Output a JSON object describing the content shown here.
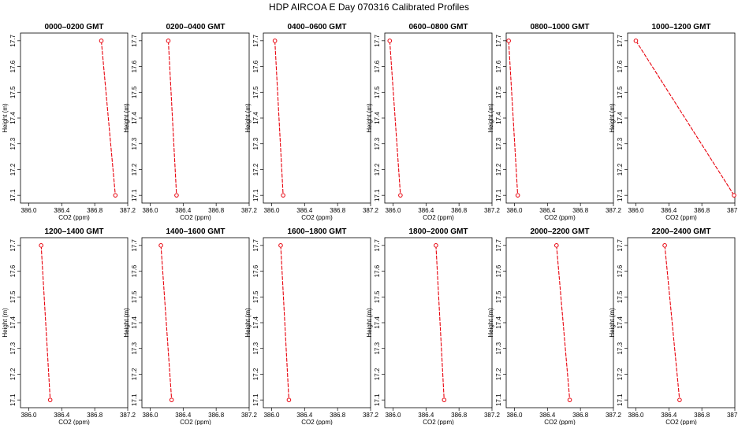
{
  "title": "HDP  AIRCOA E  Day 070316  Calibrated Profiles",
  "colors": {
    "series": "#e8000b",
    "axis": "#000000",
    "background": "#ffffff"
  },
  "chart_data": {
    "type": "line",
    "layout": "grid-2x6",
    "grid": false,
    "legend": "none",
    "xlabel": "CO2 (ppm)",
    "ylabel": "Height (m)",
    "xlim": [
      385.9,
      387.2
    ],
    "ylim": [
      17.07,
      17.73
    ],
    "xticks": [
      386.0,
      386.4,
      386.8,
      387.2
    ],
    "xtick_labels": [
      "386.0",
      "386.4",
      "386.8",
      "387.2"
    ],
    "yticks": [
      17.1,
      17.2,
      17.3,
      17.4,
      17.5,
      17.6,
      17.7
    ],
    "ytick_labels": [
      "17.1",
      "17.2",
      "17.3",
      "17.4",
      "17.5",
      "17.6",
      "17.7"
    ],
    "panels": [
      {
        "title": "0000–0200 GMT",
        "points": [
          [
            386.88,
            17.7
          ],
          [
            387.05,
            17.1
          ]
        ]
      },
      {
        "title": "0200–0400 GMT",
        "points": [
          [
            386.22,
            17.7
          ],
          [
            386.32,
            17.1
          ]
        ]
      },
      {
        "title": "0400–0600 GMT",
        "points": [
          [
            386.04,
            17.7
          ],
          [
            386.14,
            17.1
          ]
        ]
      },
      {
        "title": "0600–0800 GMT",
        "points": [
          [
            385.96,
            17.7
          ],
          [
            386.09,
            17.1
          ]
        ]
      },
      {
        "title": "0800–1000 GMT",
        "points": [
          [
            385.93,
            17.7
          ],
          [
            386.04,
            17.1
          ]
        ]
      },
      {
        "title": "1000–1200 GMT",
        "points": [
          [
            386.0,
            17.7
          ],
          [
            387.19,
            17.1
          ]
        ]
      },
      {
        "title": "1200–1400 GMT",
        "points": [
          [
            386.15,
            17.7
          ],
          [
            386.26,
            17.1
          ]
        ]
      },
      {
        "title": "1400–1600 GMT",
        "points": [
          [
            386.13,
            17.7
          ],
          [
            386.26,
            17.1
          ]
        ]
      },
      {
        "title": "1600–1800 GMT",
        "points": [
          [
            386.11,
            17.7
          ],
          [
            386.21,
            17.1
          ]
        ]
      },
      {
        "title": "1800–2000 GMT",
        "points": [
          [
            386.52,
            17.7
          ],
          [
            386.62,
            17.1
          ]
        ]
      },
      {
        "title": "2000–2200 GMT",
        "points": [
          [
            386.51,
            17.7
          ],
          [
            386.67,
            17.1
          ]
        ]
      },
      {
        "title": "2200–2400 GMT",
        "points": [
          [
            386.35,
            17.7
          ],
          [
            386.53,
            17.1
          ]
        ]
      }
    ]
  }
}
